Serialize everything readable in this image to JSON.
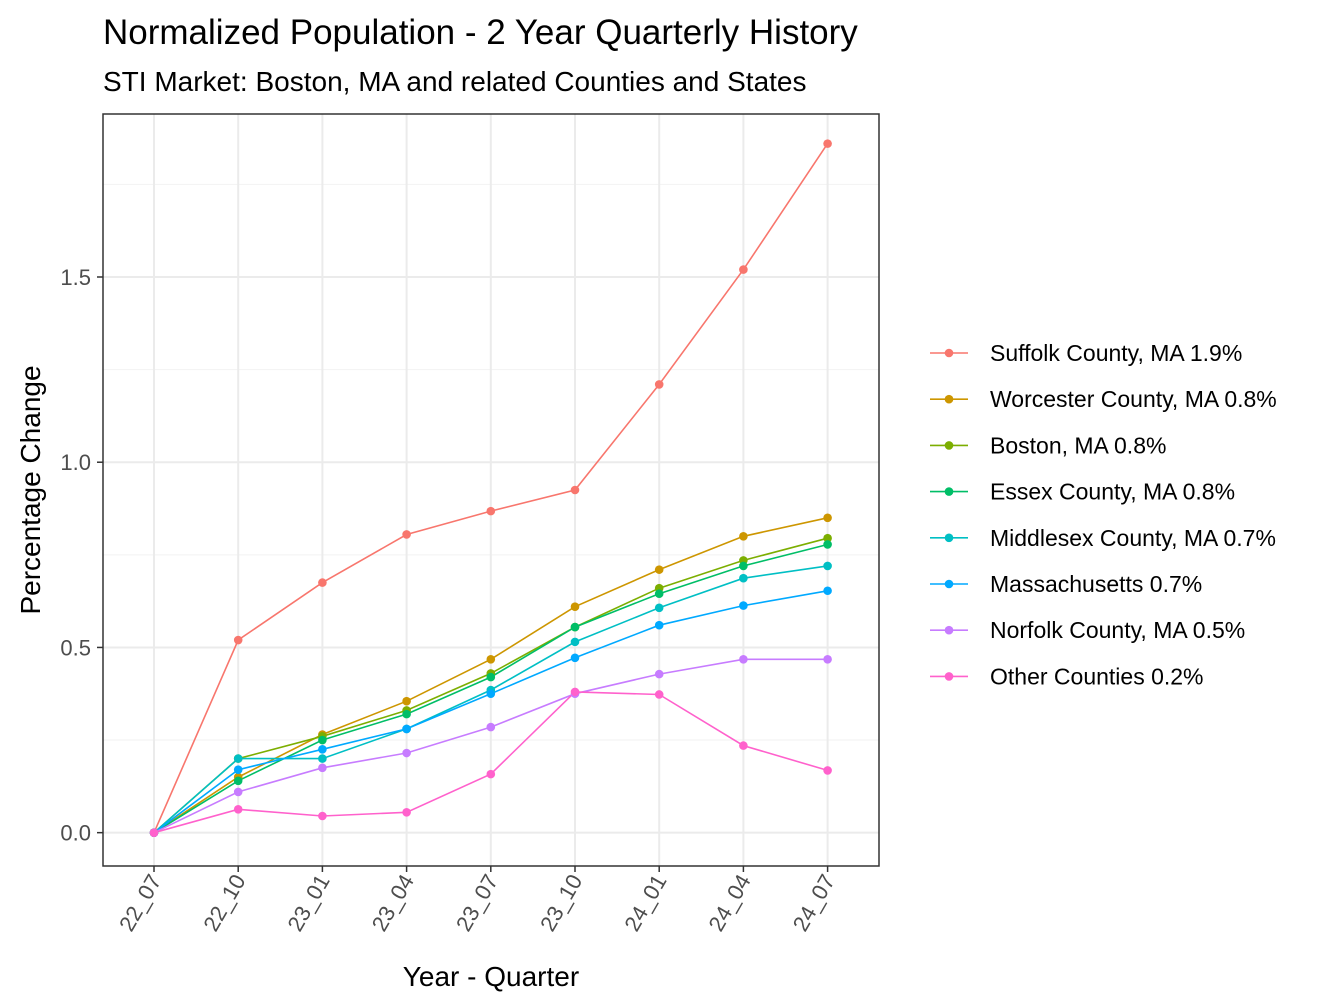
{
  "chart_data": {
    "type": "line",
    "title": "Normalized Population - 2 Year Quarterly History",
    "subtitle": "STI Market: Boston, MA and related Counties and States",
    "xlabel": "Year - Quarter",
    "ylabel": "Percentage Change",
    "categories": [
      "22_07",
      "22_10",
      "23_01",
      "23_04",
      "23_07",
      "23_10",
      "24_01",
      "24_04",
      "24_07"
    ],
    "ylim": [
      -0.09,
      1.94
    ],
    "yticks": [
      0.0,
      0.5,
      1.0,
      1.5
    ],
    "ytick_labels": [
      "0.0",
      "0.5",
      "1.0",
      "1.5"
    ],
    "grid": true,
    "legend_position": "right",
    "series": [
      {
        "name": "Suffolk County, MA 1.9%",
        "color": "#F8766D",
        "values": [
          0,
          0.52,
          0.675,
          0.805,
          0.868,
          0.925,
          1.21,
          1.52,
          1.86
        ]
      },
      {
        "name": "Worcester County, MA 0.8%",
        "color": "#CD9600",
        "values": [
          0,
          0.15,
          0.265,
          0.355,
          0.468,
          0.61,
          0.71,
          0.8,
          0.85
        ]
      },
      {
        "name": "Boston, MA 0.8%",
        "color": "#7CAE00",
        "values": [
          0,
          0.2,
          0.26,
          0.33,
          0.43,
          0.555,
          0.66,
          0.735,
          0.795
        ]
      },
      {
        "name": "Essex County, MA 0.8%",
        "color": "#00BE67",
        "values": [
          0,
          0.14,
          0.25,
          0.32,
          0.42,
          0.555,
          0.645,
          0.72,
          0.778
        ]
      },
      {
        "name": "Middlesex County, MA 0.7%",
        "color": "#00BFC4",
        "values": [
          0,
          0.2,
          0.2,
          0.28,
          0.385,
          0.515,
          0.607,
          0.687,
          0.72
        ]
      },
      {
        "name": "Massachusetts 0.7%",
        "color": "#00A9FF",
        "values": [
          0,
          0.17,
          0.225,
          0.28,
          0.375,
          0.472,
          0.56,
          0.613,
          0.653
        ]
      },
      {
        "name": "Norfolk County, MA 0.5%",
        "color": "#C77CFF",
        "values": [
          0,
          0.11,
          0.175,
          0.215,
          0.285,
          0.375,
          0.428,
          0.468,
          0.468
        ]
      },
      {
        "name": "Other Counties 0.2%",
        "color": "#FF61CC",
        "values": [
          0,
          0.063,
          0.045,
          0.055,
          0.158,
          0.38,
          0.373,
          0.235,
          0.168
        ]
      }
    ]
  }
}
